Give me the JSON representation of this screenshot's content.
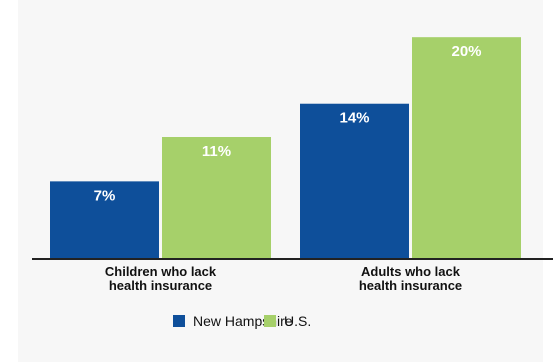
{
  "chart_data": {
    "type": "bar",
    "categories": [
      [
        "Children who lack",
        "health insurance"
      ],
      [
        "Adults who lack",
        "health insurance"
      ]
    ],
    "series": [
      {
        "name": "New Hampshire",
        "color": "#0e4f9a",
        "values": [
          7,
          14
        ],
        "labels": [
          "7%",
          "14%"
        ]
      },
      {
        "name": "U.S.",
        "color": "#a6d06a",
        "values": [
          11,
          20
        ],
        "labels": [
          "11%",
          "20%"
        ]
      }
    ],
    "ylim": [
      0,
      22
    ],
    "grid": false,
    "legend": "bottom-center"
  }
}
